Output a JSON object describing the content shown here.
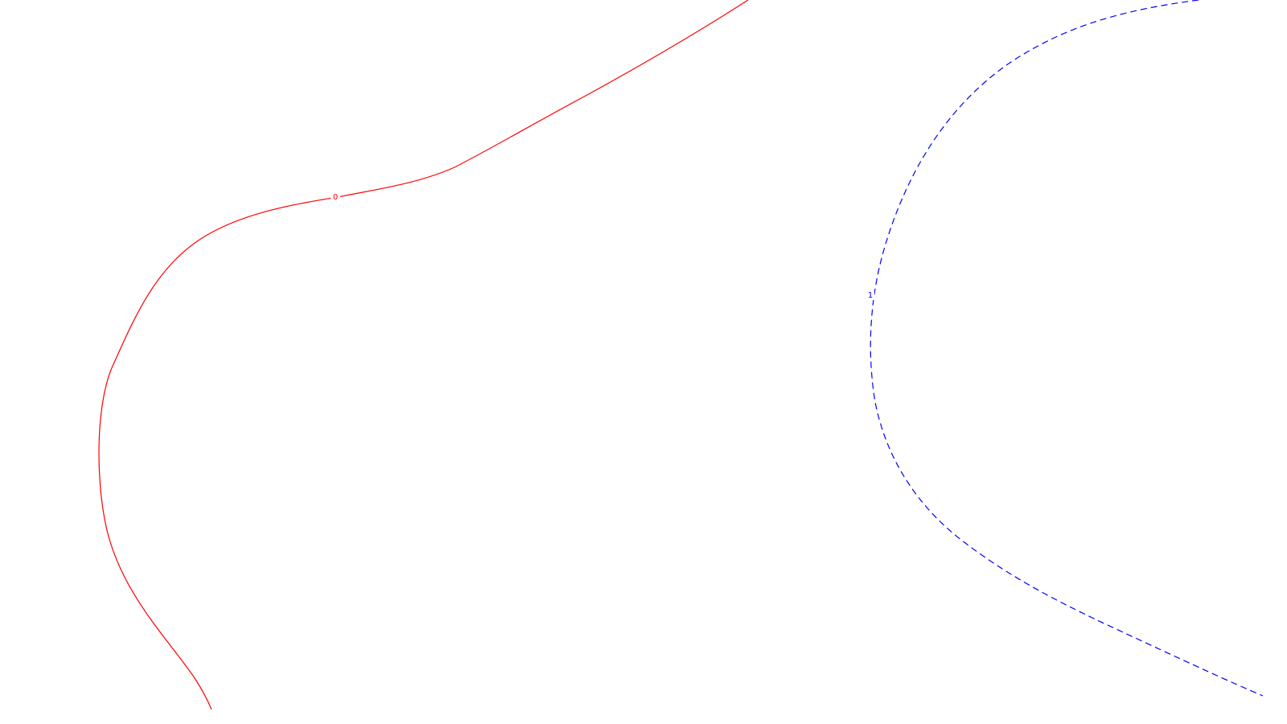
{
  "contours": [
    {
      "label": "0",
      "color": "#ff0000",
      "line_style": "solid"
    },
    {
      "label": "1",
      "color": "#0000ff",
      "line_style": "dashed"
    }
  ]
}
